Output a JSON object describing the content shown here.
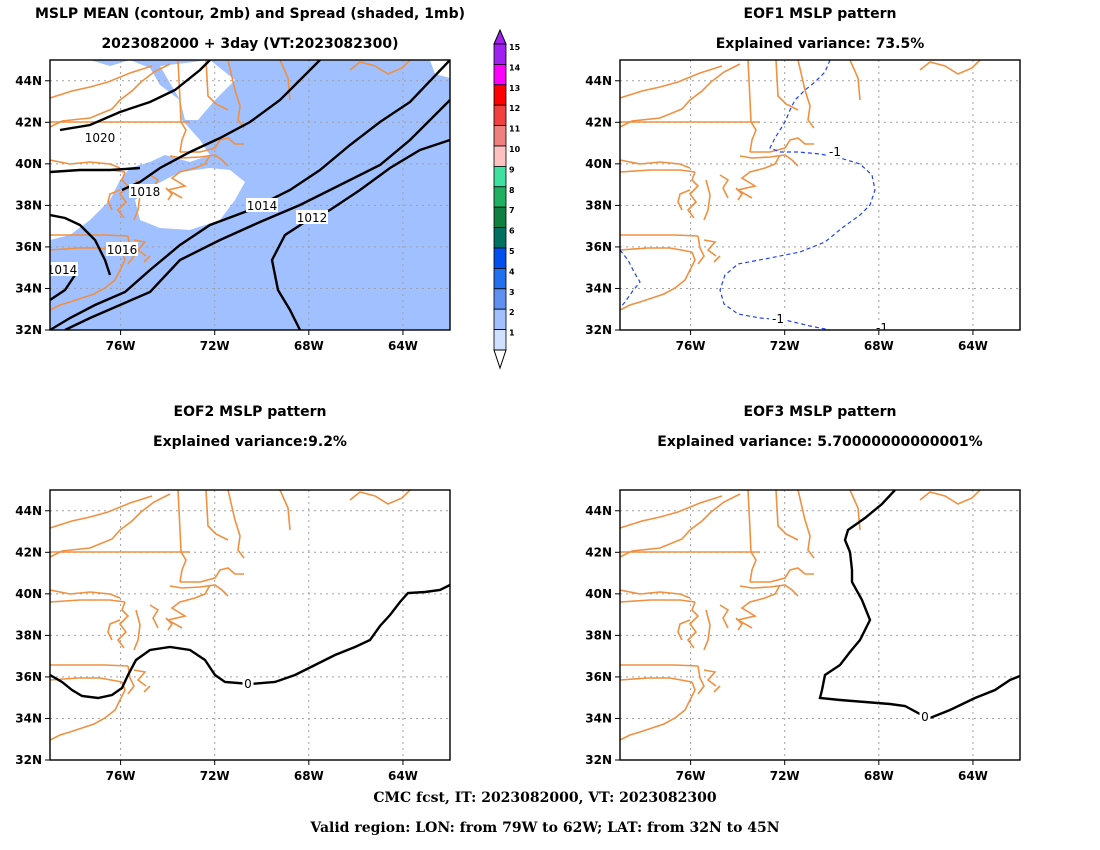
{
  "panels": [
    {
      "id": "mean",
      "title_lines": [
        "MSLP MEAN (contour, 2mb) and Spread (shaded, 1mb)",
        "2023082000 + 3day (VT:2023082300)"
      ],
      "contour_labels": [
        "1020",
        "1018",
        "1016",
        "1014",
        "1014",
        "1012"
      ]
    },
    {
      "id": "eof1",
      "title_lines": [
        "EOF1 MSLP pattern",
        "Explained variance: 73.5%"
      ],
      "contour_labels": [
        "-1",
        "-1",
        "-1"
      ]
    },
    {
      "id": "eof2",
      "title_lines": [
        "EOF2 MSLP pattern",
        "Explained variance:9.2%"
      ],
      "contour_labels": [
        "0"
      ]
    },
    {
      "id": "eof3",
      "title_lines": [
        "EOF3 MSLP pattern",
        "Explained variance: 5.70000000000001%"
      ],
      "contour_labels": [
        "0"
      ]
    }
  ],
  "axes": {
    "lon_ticks": [
      "76W",
      "72W",
      "68W",
      "64W"
    ],
    "lat_ticks": [
      "44N",
      "42N",
      "40N",
      "38N",
      "36N",
      "34N",
      "32N"
    ],
    "lon_range": [
      -79,
      -62
    ],
    "lat_range": [
      32,
      45
    ]
  },
  "colorbar": {
    "labels": [
      "15",
      "14",
      "13",
      "12",
      "11",
      "10",
      "9",
      "8",
      "7",
      "6",
      "5",
      "4",
      "3",
      "2",
      "1"
    ],
    "colors": [
      "#a020f0",
      "#ff00ff",
      "#ff0000",
      "#f04040",
      "#f08080",
      "#ffc0c0",
      "#40e0a0",
      "#20b060",
      "#108040",
      "#007060",
      "#0050f0",
      "#2070f0",
      "#6090f0",
      "#a0c0ff",
      "#d0e0ff"
    ]
  },
  "colors": {
    "coast": "#f09040",
    "spread_shade": "#a0c0ff",
    "eof_negative": "#2040ff",
    "grid": "#a0a0a0"
  },
  "footer": {
    "line1": "CMC fcst, IT: 2023082000, VT: 2023082300",
    "line2": "Valid region: LON: from 79W to 62W; LAT: from 32N to 45N"
  }
}
